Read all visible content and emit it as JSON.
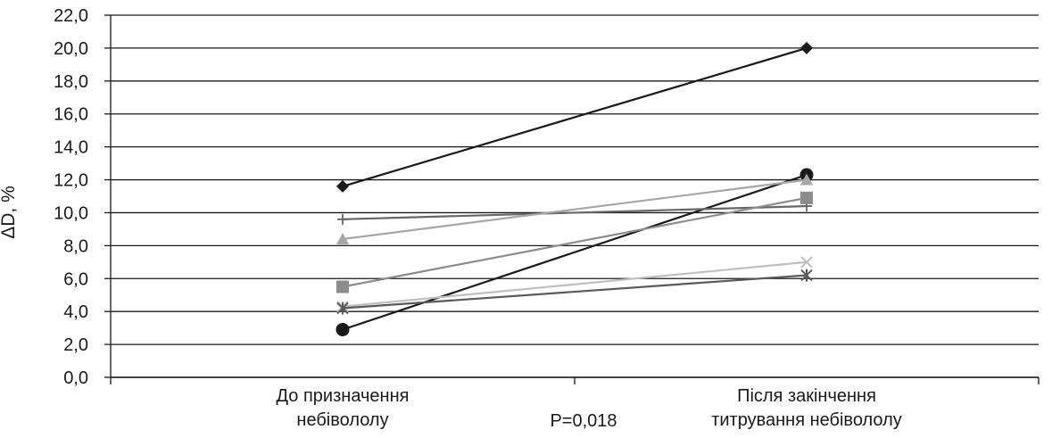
{
  "chart_data": {
    "type": "line",
    "ylabel": "ΔD, %",
    "xlabel": "",
    "ylim": [
      0,
      22
    ],
    "ytick_step": 2,
    "yticks": [
      "0,0",
      "2,0",
      "4,0",
      "6,0",
      "8,0",
      "10,0",
      "12,0",
      "14,0",
      "16,0",
      "18,0",
      "20,0",
      "22,0"
    ],
    "categories": [
      [
        "До призначення",
        "небівололу"
      ],
      [
        "Після закінчення",
        "титрування небівололу"
      ]
    ],
    "annotation": "P=0,018",
    "grid": true,
    "series": [
      {
        "marker": "diamond",
        "color": "#1a1a1a",
        "values": [
          11.6,
          20.0
        ]
      },
      {
        "marker": "circle",
        "color": "#1a1a1a",
        "values": [
          2.9,
          12.3
        ]
      },
      {
        "marker": "plus",
        "color": "#666666",
        "values": [
          9.6,
          10.4
        ]
      },
      {
        "marker": "triangle",
        "color": "#a6a6a6",
        "values": [
          8.4,
          12.0
        ]
      },
      {
        "marker": "square",
        "color": "#8c8c8c",
        "values": [
          5.5,
          10.9
        ]
      },
      {
        "marker": "x",
        "color": "#bfbfbf",
        "values": [
          4.3,
          7.0
        ]
      },
      {
        "marker": "star",
        "color": "#595959",
        "values": [
          4.2,
          6.2
        ]
      }
    ]
  }
}
